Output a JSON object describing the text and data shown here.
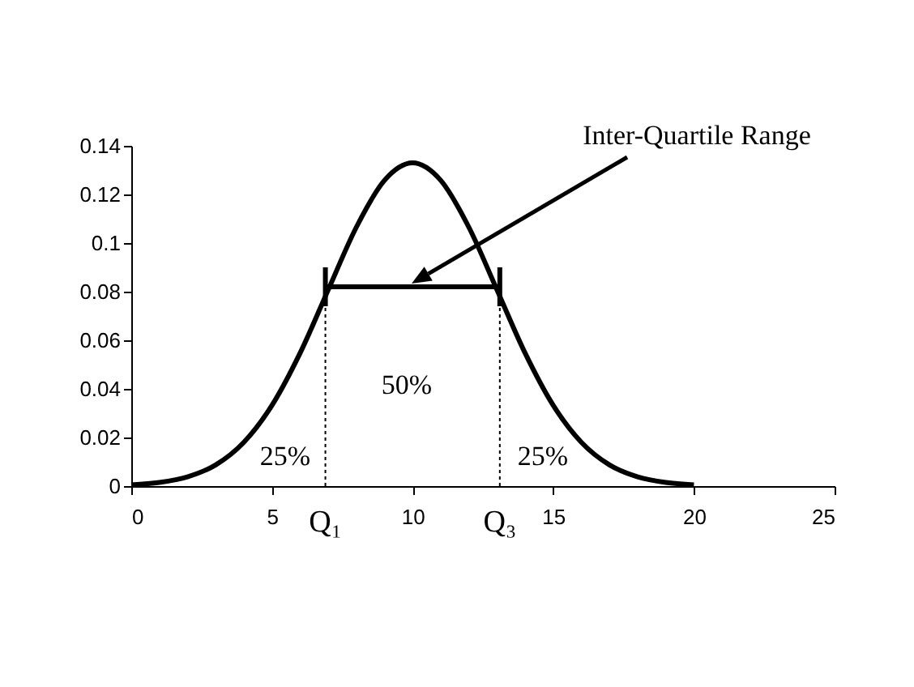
{
  "chart_data": {
    "type": "line",
    "series": [
      {
        "color": "#000000",
        "x": [
          0,
          1,
          2,
          3,
          4,
          5,
          6,
          7,
          8,
          9,
          10,
          11,
          12,
          13,
          14,
          15,
          16,
          17,
          18,
          19,
          20
        ],
        "values": [
          0.0005,
          0.0015,
          0.0038,
          0.0087,
          0.018,
          0.0332,
          0.0547,
          0.0807,
          0.1065,
          0.1258,
          0.133,
          0.1258,
          0.1065,
          0.0807,
          0.0547,
          0.0332,
          0.018,
          0.0087,
          0.0038,
          0.0015,
          0.0005
        ],
        "line_style": "solid"
      },
      {
        "color": "#000000",
        "x": [
          6.9,
          13.1
        ],
        "values": [
          0.082,
          0.082
        ],
        "errors": [
          0.008,
          0.008
        ],
        "line_style": "solid"
      },
      {
        "name": "Q₁",
        "color": "#000000",
        "x": [
          6.9,
          6.9
        ],
        "values": [
          0,
          0.082
        ],
        "line_style": "dotted"
      },
      {
        "name": "Q₃",
        "color": "#000000",
        "x": [
          13.1,
          13.1
        ],
        "values": [
          0,
          0.082
        ],
        "line_style": "dotted"
      }
    ],
    "annotations": [
      "Inter-Quartile Range",
      "50%",
      "25%",
      "25%"
    ],
    "xlim": [
      0,
      25
    ],
    "xticks": [
      0,
      5,
      10,
      15,
      20,
      25
    ],
    "ylim": [
      0,
      0.14
    ],
    "yticks": [
      0,
      0.02,
      0.04,
      0.06,
      0.08,
      0.1,
      0.12,
      0.14
    ],
    "grid": false
  }
}
